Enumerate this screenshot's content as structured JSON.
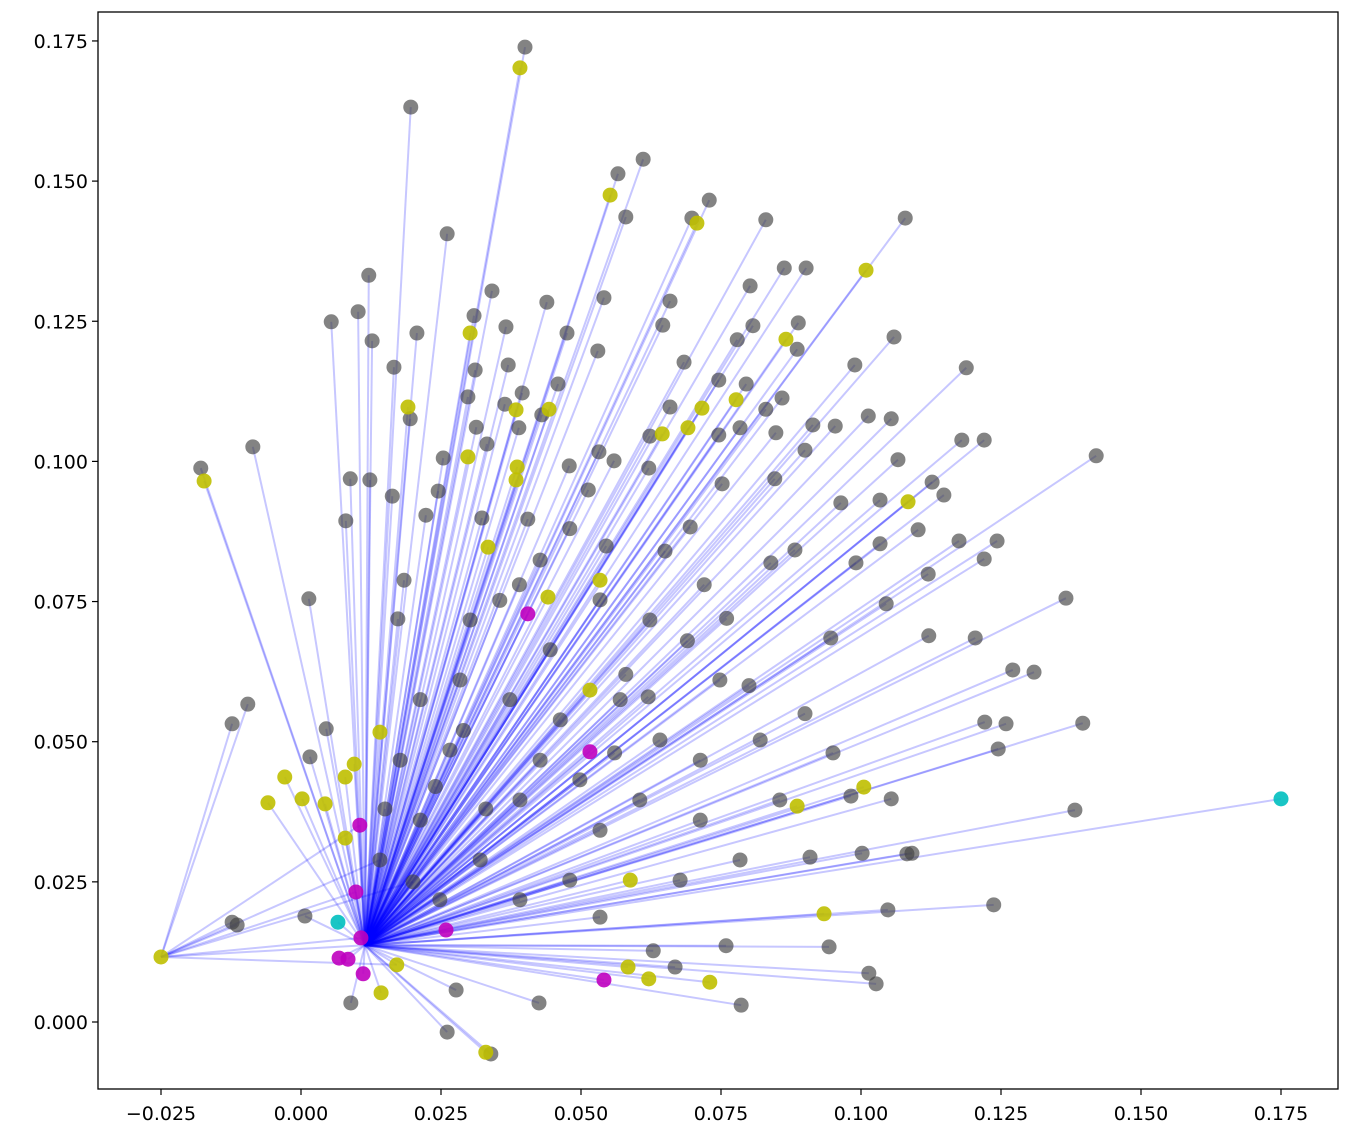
{
  "chart_data": {
    "type": "scatter",
    "title": "",
    "xlabel": "",
    "ylabel": "",
    "xlim": [
      -0.036,
      0.185
    ],
    "ylim": [
      -0.012,
      0.1785
    ],
    "grid": false,
    "x_ticks": [
      "−0.025",
      "0.000",
      "0.025",
      "0.050",
      "0.075",
      "0.100",
      "0.125",
      "0.150",
      "0.175"
    ],
    "x_tick_values": [
      -0.025,
      0,
      0.025,
      0.05,
      0.075,
      0.1,
      0.125,
      0.15,
      0.175
    ],
    "y_ticks": [
      "0.000",
      "0.025",
      "0.050",
      "0.075",
      "0.100",
      "0.125",
      "0.150",
      "0.175"
    ],
    "y_tick_values": [
      0,
      0.025,
      0.05,
      0.075,
      0.1,
      0.125,
      0.15,
      0.175
    ],
    "line_color": "#0000ff",
    "line_hub": [
      0.0114,
      0.0137
    ],
    "secondary_hub": [
      -0.025,
      0.0116
    ],
    "groups": [
      {
        "color": "#404040",
        "points": [
          [
            0.04,
            0.1739
          ],
          [
            0.0196,
            0.1632
          ],
          [
            0.0611,
            0.1539
          ],
          [
            0.0566,
            0.1513
          ],
          [
            0.058,
            0.1436
          ],
          [
            0.0729,
            0.1466
          ],
          [
            0.0698,
            0.1434
          ],
          [
            0.1079,
            0.1434
          ],
          [
            0.083,
            0.1431
          ],
          [
            0.0261,
            0.1406
          ],
          [
            0.0863,
            0.1345
          ],
          [
            0.0902,
            0.1345
          ],
          [
            0.0121,
            0.1332
          ],
          [
            0.0341,
            0.1304
          ],
          [
            0.0541,
            0.1292
          ],
          [
            0.0802,
            0.1313
          ],
          [
            0.0659,
            0.1286
          ],
          [
            0.0439,
            0.1284
          ],
          [
            0.0054,
            0.1249
          ],
          [
            0.0102,
            0.1267
          ],
          [
            0.0309,
            0.126
          ],
          [
            0.0646,
            0.1243
          ],
          [
            0.0888,
            0.1247
          ],
          [
            0.0207,
            0.1229
          ],
          [
            0.0475,
            0.1229
          ],
          [
            0.0807,
            0.1242
          ],
          [
            0.0127,
            0.1215
          ],
          [
            0.1059,
            0.1222
          ],
          [
            0.0366,
            0.124
          ],
          [
            0.0779,
            0.1217
          ],
          [
            0.053,
            0.1197
          ],
          [
            0.0886,
            0.12
          ],
          [
            0.0684,
            0.1177
          ],
          [
            0.1188,
            0.1167
          ],
          [
            0.0166,
            0.1168
          ],
          [
            0.037,
            0.1172
          ],
          [
            0.0989,
            0.1172
          ],
          [
            0.0311,
            0.1163
          ],
          [
            0.0459,
            0.1138
          ],
          [
            0.0746,
            0.1145
          ],
          [
            0.0795,
            0.1138
          ],
          [
            0.0395,
            0.1122
          ],
          [
            0.0298,
            0.1115
          ],
          [
            0.0859,
            0.1113
          ],
          [
            0.0364,
            0.1102
          ],
          [
            0.083,
            0.1093
          ],
          [
            0.0659,
            0.1097
          ],
          [
            0.0195,
            0.1076
          ],
          [
            0.043,
            0.1083
          ],
          [
            0.1013,
            0.1081
          ],
          [
            0.1054,
            0.1076
          ],
          [
            0.0914,
            0.1065
          ],
          [
            0.0313,
            0.1061
          ],
          [
            0.0784,
            0.106
          ],
          [
            0.0954,
            0.1063
          ],
          [
            0.0746,
            0.1047
          ],
          [
            0.0848,
            0.1051
          ],
          [
            0.0623,
            0.1045
          ],
          [
            0.0389,
            0.106
          ],
          [
            0.122,
            0.1038
          ],
          [
            0.118,
            0.1038
          ],
          [
            -0.0086,
            0.1026
          ],
          [
            0.0332,
            0.1031
          ],
          [
            0.0532,
            0.1017
          ],
          [
            0.09,
            0.102
          ],
          [
            0.142,
            0.101
          ],
          [
            0.0254,
            0.1006
          ],
          [
            0.1066,
            0.1003
          ],
          [
            -0.0179,
            0.0988
          ],
          [
            0.0479,
            0.0992
          ],
          [
            0.0559,
            0.1001
          ],
          [
            0.0621,
            0.0988
          ],
          [
            0.0846,
            0.0969
          ],
          [
            0.0088,
            0.0969
          ],
          [
            0.0123,
            0.0967
          ],
          [
            0.1127,
            0.0963
          ],
          [
            0.0752,
            0.096
          ],
          [
            0.0513,
            0.0949
          ],
          [
            0.0245,
            0.0947
          ],
          [
            0.0163,
            0.0938
          ],
          [
            0.1148,
            0.094
          ],
          [
            0.0964,
            0.0926
          ],
          [
            0.1034,
            0.0931
          ],
          [
            0.0223,
            0.0904
          ],
          [
            0.008,
            0.0894
          ],
          [
            0.0323,
            0.0899
          ],
          [
            0.0405,
            0.0897
          ],
          [
            0.1102,
            0.0878
          ],
          [
            0.0695,
            0.0883
          ],
          [
            0.1175,
            0.0858
          ],
          [
            0.1243,
            0.0858
          ],
          [
            0.1034,
            0.0853
          ],
          [
            0.0882,
            0.0842
          ],
          [
            0.0545,
            0.0849
          ],
          [
            0.122,
            0.0826
          ],
          [
            0.0991,
            0.0819
          ],
          [
            0.112,
            0.0799
          ],
          [
            0.0839,
            0.0819
          ],
          [
            0.0184,
            0.0788
          ],
          [
            0.1366,
            0.0756
          ],
          [
            0.0014,
            0.0755
          ],
          [
            0.1045,
            0.0746
          ],
          [
            0.0173,
            0.0719
          ],
          [
            0.1204,
            0.0685
          ],
          [
            0.1121,
            0.0689
          ],
          [
            0.0946,
            0.0685
          ],
          [
            0.1271,
            0.0628
          ],
          [
            0.1309,
            0.0624
          ],
          [
            -0.0095,
            0.0567
          ],
          [
            -0.0123,
            0.0532
          ],
          [
            0.1396,
            0.0533
          ],
          [
            0.1221,
            0.0535
          ],
          [
            0.1259,
            0.0532
          ],
          [
            0.1245,
            0.0487
          ],
          [
            0.0045,
            0.0523
          ],
          [
            0.0016,
            0.0473
          ],
          [
            0.0982,
            0.0403
          ],
          [
            0.1054,
            0.0398
          ],
          [
            0.1382,
            0.0378
          ],
          [
            0.1091,
            0.0301
          ],
          [
            0.1082,
            0.03
          ],
          [
            0.1002,
            0.0301
          ],
          [
            0.0909,
            0.0294
          ],
          [
            0.1237,
            0.0209
          ],
          [
            0.1048,
            0.02
          ],
          [
            0.0943,
            0.0134
          ],
          [
            0.1014,
            0.0087
          ],
          [
            0.1027,
            0.0068
          ],
          [
            0.0786,
            0.003
          ],
          [
            0.0425,
            0.0034
          ],
          [
            0.0089,
            0.0034
          ],
          [
            0.0277,
            0.0057
          ],
          [
            0.0261,
            -0.0018
          ],
          [
            0.0339,
            -0.0057
          ],
          [
            0.0007,
            0.0189
          ],
          [
            -0.0123,
            0.0178
          ],
          [
            -0.0114,
            0.0173
          ],
          [
            0.0668,
            0.0098
          ],
          [
            0.0629,
            0.0127
          ],
          [
            0.0759,
            0.0136
          ],
          [
            0.0534,
            0.0187
          ],
          [
            0.0355,
            0.0752
          ],
          [
            0.0445,
            0.0664
          ],
          [
            0.057,
            0.0575
          ],
          [
            0.0713,
            0.0467
          ],
          [
            0.0266,
            0.0485
          ],
          [
            0.0391,
            0.0396
          ],
          [
            0.0534,
            0.0342
          ],
          [
            0.0677,
            0.0253
          ],
          [
            0.032,
            0.0289
          ],
          [
            0.0213,
            0.036
          ],
          [
            0.0463,
            0.0539
          ],
          [
            0.0623,
            0.0717
          ],
          [
            0.0748,
            0.061
          ],
          [
            0.082,
            0.0503
          ],
          [
            0.0855,
            0.0396
          ],
          [
            0.0427,
            0.0824
          ],
          [
            0.0534,
            0.0753
          ],
          [
            0.0284,
            0.061
          ],
          [
            0.0177,
            0.0467
          ],
          [
            0.0141,
            0.0289
          ],
          [
            0.0248,
            0.0218
          ],
          [
            0.0391,
            0.0218
          ],
          [
            0.0498,
            0.0432
          ],
          [
            0.0605,
            0.0396
          ],
          [
            0.0713,
            0.036
          ],
          [
            0.0784,
            0.0289
          ],
          [
            0.0641,
            0.0503
          ],
          [
            0.0373,
            0.0575
          ],
          [
            0.048,
            0.0253
          ],
          [
            0.0213,
            0.0575
          ],
          [
            0.0302,
            0.0717
          ],
          [
            0.0427,
            0.0467
          ],
          [
            0.058,
            0.062
          ],
          [
            0.069,
            0.068
          ],
          [
            0.076,
            0.072
          ],
          [
            0.08,
            0.06
          ],
          [
            0.09,
            0.055
          ],
          [
            0.095,
            0.048
          ],
          [
            0.033,
            0.038
          ],
          [
            0.024,
            0.042
          ],
          [
            0.015,
            0.038
          ],
          [
            0.02,
            0.025
          ],
          [
            0.056,
            0.048
          ],
          [
            0.062,
            0.058
          ],
          [
            0.072,
            0.078
          ],
          [
            0.065,
            0.084
          ],
          [
            0.048,
            0.088
          ],
          [
            0.039,
            0.078
          ],
          [
            0.029,
            0.052
          ]
        ]
      },
      {
        "color": "#bfbf00",
        "points": [
          [
            0.0391,
            0.1702
          ],
          [
            0.0552,
            0.1475
          ],
          [
            0.0707,
            0.1425
          ],
          [
            0.1009,
            0.1341
          ],
          [
            0.0302,
            0.1229
          ],
          [
            0.0866,
            0.1218
          ],
          [
            0.0191,
            0.1097
          ],
          [
            0.0384,
            0.1092
          ],
          [
            0.0443,
            0.1093
          ],
          [
            0.0716,
            0.1095
          ],
          [
            0.0777,
            0.111
          ],
          [
            0.0691,
            0.106
          ],
          [
            0.0645,
            0.1049
          ],
          [
            0.0298,
            0.1008
          ],
          [
            0.0386,
            0.099
          ],
          [
            0.0384,
            0.0967
          ],
          [
            -0.0173,
            0.0965
          ],
          [
            0.1084,
            0.0928
          ],
          [
            0.0334,
            0.0847
          ],
          [
            0.0441,
            0.0758
          ],
          [
            -0.0059,
            0.0391
          ],
          [
            -0.0029,
            0.0437
          ],
          [
            0.0002,
            0.0398
          ],
          [
            0.0043,
            0.0389
          ],
          [
            0.0079,
            0.0437
          ],
          [
            0.0095,
            0.046
          ],
          [
            0.0079,
            0.0328
          ],
          [
            0.0141,
            0.0517
          ],
          [
            0.0886,
            0.0385
          ],
          [
            0.1005,
            0.0419
          ],
          [
            0.0934,
            0.0193
          ],
          [
            0.0588,
            0.0253
          ],
          [
            0.0584,
            0.0098
          ],
          [
            0.0621,
            0.0077
          ],
          [
            0.073,
            0.0071
          ],
          [
            0.0143,
            0.0052
          ],
          [
            0.0171,
            0.0102
          ],
          [
            0.033,
            -0.0054
          ],
          [
            0.0534,
            0.0788
          ],
          [
            0.0516,
            0.0592
          ],
          [
            -0.025,
            0.0116
          ]
        ]
      },
      {
        "color": "#bf00bf",
        "points": [
          [
            0.0105,
            0.0351
          ],
          [
            0.0098,
            0.0232
          ],
          [
            0.0107,
            0.015
          ],
          [
            0.0068,
            0.0114
          ],
          [
            0.0084,
            0.0112
          ],
          [
            0.0111,
            0.0086
          ],
          [
            0.0541,
            0.0075
          ],
          [
            0.0516,
            0.0482
          ],
          [
            0.0405,
            0.0728
          ],
          [
            0.0259,
            0.0164
          ]
        ]
      },
      {
        "color": "#00bfbf",
        "points": [
          [
            0.175,
            0.0398
          ],
          [
            0.0066,
            0.0178
          ]
        ]
      }
    ]
  }
}
